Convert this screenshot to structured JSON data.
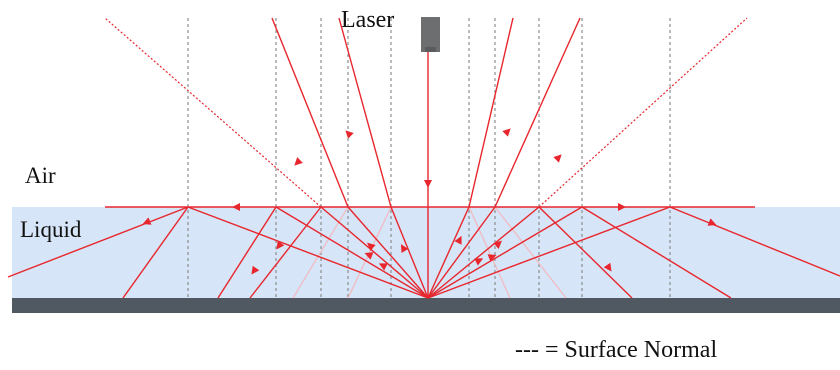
{
  "labels": {
    "laser": "Laser",
    "air": "Air",
    "liquid": "Liquid",
    "legend": "--- = Surface Normal"
  },
  "colors": {
    "liquid_fill": "#d6e5f7",
    "substrate": "#505862",
    "laser_body": "#6d6e70",
    "ray": "#e8262d",
    "faded_ray": "#f3b8bf",
    "surface_normal": "#8e8e8e"
  },
  "icons": {
    "laser": "laser-emitter-icon"
  }
}
